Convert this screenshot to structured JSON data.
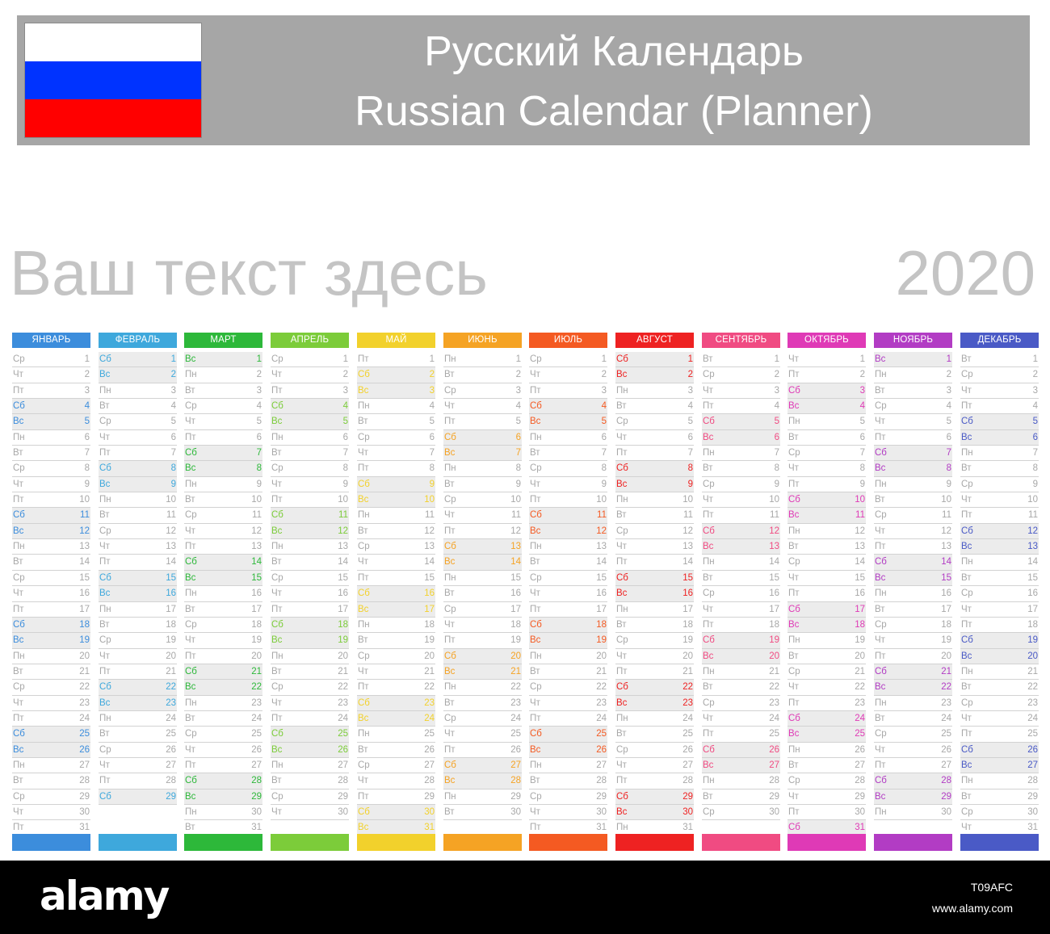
{
  "header": {
    "title_ru": "Русский Календарь",
    "title_en": "Russian Calendar (Planner)",
    "flag_colors": [
      "#ffffff",
      "#0033ff",
      "#ff0000"
    ]
  },
  "subtitle": "Ваш текст здесь",
  "year": "2020",
  "day_names": [
    "Пн",
    "Вт",
    "Ср",
    "Чт",
    "Пт",
    "Сб",
    "Вс"
  ],
  "months": [
    {
      "name": "ЯНВАРЬ",
      "color": "#3c8ddc",
      "first_weekday": 2,
      "days_count": 31
    },
    {
      "name": "ФЕВРАЛЬ",
      "color": "#3ea8dc",
      "first_weekday": 5,
      "days_count": 29
    },
    {
      "name": "МАРТ",
      "color": "#2db83a",
      "first_weekday": 6,
      "days_count": 31
    },
    {
      "name": "АПРЕЛЬ",
      "color": "#7ccc3a",
      "first_weekday": 2,
      "days_count": 30
    },
    {
      "name": "МАЙ",
      "color": "#f2d12c",
      "first_weekday": 4,
      "days_count": 31
    },
    {
      "name": "ИЮНЬ",
      "color": "#f5a324",
      "first_weekday": 0,
      "days_count": 30
    },
    {
      "name": "ИЮЛЬ",
      "color": "#f45a22",
      "first_weekday": 2,
      "days_count": 31
    },
    {
      "name": "АВГУСТ",
      "color": "#ee2222",
      "first_weekday": 5,
      "days_count": 31
    },
    {
      "name": "СЕНТЯБРЬ",
      "color": "#f04b82",
      "first_weekday": 1,
      "days_count": 30
    },
    {
      "name": "ОКТЯБРЬ",
      "color": "#df3ab6",
      "first_weekday": 3,
      "days_count": 31
    },
    {
      "name": "НОЯБРЬ",
      "color": "#b23cc4",
      "first_weekday": 6,
      "days_count": 30
    },
    {
      "name": "ДЕКАБРЬ",
      "color": "#4a5ac6",
      "first_weekday": 1,
      "days_count": 31
    }
  ],
  "watermark": {
    "logo": "alamy",
    "image_id": "T09AFC",
    "url": "www.alamy.com"
  }
}
